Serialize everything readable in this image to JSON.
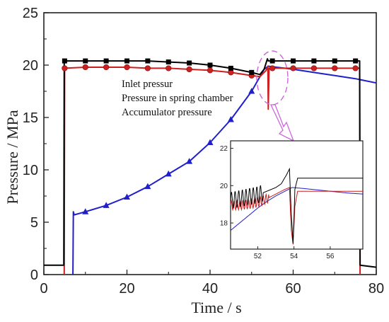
{
  "chart_data": [
    {
      "type": "line",
      "xlabel": "Time / s",
      "ylabel": "Pressure  / MPa",
      "xlim": [
        0,
        80
      ],
      "ylim": [
        0,
        25
      ],
      "xticks": [
        "0",
        "20",
        "40",
        "60",
        "80"
      ],
      "yticks": [
        "0",
        "5",
        "10",
        "15",
        "20",
        "25"
      ],
      "legend": {
        "placement": "inside-center",
        "entries": [
          "Inlet pressur",
          "Pressure in spring chamber",
          "Accumulator pressure"
        ]
      },
      "series": [
        {
          "name": "Inlet pressur",
          "color": "#000000",
          "marker": "square",
          "points": [
            [
              0,
              0.9
            ],
            [
              4.8,
              0.9
            ],
            [
              4.9,
              20.4
            ],
            [
              10,
              20.4
            ],
            [
              15,
              20.4
            ],
            [
              20,
              20.4
            ],
            [
              25,
              20.4
            ],
            [
              30,
              20.3
            ],
            [
              35,
              20.2
            ],
            [
              40,
              20.0
            ],
            [
              45,
              19.7
            ],
            [
              50,
              19.3
            ],
            [
              52,
              19.1
            ],
            [
              53,
              19.6
            ],
            [
              53.8,
              20.6
            ],
            [
              54,
              20.4
            ],
            [
              55,
              20.4
            ],
            [
              60,
              20.4
            ],
            [
              65,
              20.4
            ],
            [
              70,
              20.4
            ],
            [
              75,
              20.4
            ],
            [
              76,
              20.4
            ],
            [
              76.1,
              0.9
            ],
            [
              80,
              0.7
            ]
          ],
          "marker_x": [
            5,
            10,
            15,
            20,
            25,
            30,
            35,
            40,
            45,
            50,
            55,
            60,
            65,
            70,
            75
          ]
        },
        {
          "name": "Pressure in spring chamber",
          "color": "#cc1f1f",
          "marker": "circle",
          "points": [
            [
              4.9,
              0
            ],
            [
              5,
              19.7
            ],
            [
              10,
              19.8
            ],
            [
              15,
              19.8
            ],
            [
              20,
              19.8
            ],
            [
              25,
              19.7
            ],
            [
              30,
              19.7
            ],
            [
              35,
              19.6
            ],
            [
              40,
              19.5
            ],
            [
              45,
              19.3
            ],
            [
              50,
              19.0
            ],
            [
              52,
              18.9
            ],
            [
              53.5,
              19.5
            ],
            [
              53.9,
              19.9
            ],
            [
              54,
              15.8
            ],
            [
              54.2,
              19.7
            ],
            [
              60,
              19.7
            ],
            [
              65,
              19.7
            ],
            [
              70,
              19.7
            ],
            [
              76,
              19.7
            ],
            [
              76.1,
              0
            ]
          ],
          "marker_x": [
            5,
            10,
            15,
            20,
            25,
            30,
            35,
            40,
            45,
            50,
            55,
            60,
            65,
            70,
            75
          ]
        },
        {
          "name": "Accumulator pressure",
          "color": "#1f1fcc",
          "marker": "triangle",
          "points": [
            [
              7,
              0
            ],
            [
              7.1,
              6.0
            ],
            [
              7.3,
              5.7
            ],
            [
              10,
              6.0
            ],
            [
              15,
              6.6
            ],
            [
              20,
              7.4
            ],
            [
              25,
              8.4
            ],
            [
              30,
              9.6
            ],
            [
              35,
              10.8
            ],
            [
              40,
              12.6
            ],
            [
              45,
              14.8
            ],
            [
              50,
              17.5
            ],
            [
              53,
              19.6
            ],
            [
              54,
              19.9
            ],
            [
              60,
              19.6
            ],
            [
              65,
              19.3
            ],
            [
              70,
              19.0
            ],
            [
              75,
              18.7
            ],
            [
              80,
              18.3
            ]
          ],
          "marker_x": [
            10,
            15,
            20,
            25,
            30,
            35,
            40,
            45,
            50
          ]
        }
      ]
    },
    {
      "type": "line",
      "xlim": [
        50.5,
        57.8
      ],
      "ylim": [
        16.6,
        22.4
      ],
      "xticks": [
        "52",
        "54",
        "56"
      ],
      "yticks": [
        "18",
        "20",
        "22"
      ],
      "series": [
        {
          "name": "Inlet pressur",
          "color": "#000000",
          "points": [
            [
              50.5,
              19.2
            ],
            [
              51.0,
              19.3
            ],
            [
              51.5,
              19.4
            ],
            [
              52.0,
              19.5
            ],
            [
              52.5,
              19.7
            ],
            [
              53.0,
              19.9
            ],
            [
              53.3,
              20.1
            ],
            [
              53.6,
              20.6
            ],
            [
              53.75,
              20.9
            ],
            [
              53.85,
              18.5
            ],
            [
              53.95,
              16.9
            ],
            [
              54.05,
              19.8
            ],
            [
              54.2,
              20.4
            ],
            [
              55,
              20.4
            ],
            [
              56,
              20.4
            ],
            [
              57.8,
              20.4
            ]
          ],
          "oscillation": {
            "from": 50.5,
            "to": 52.3,
            "amplitude": 0.45,
            "period": 0.2
          }
        },
        {
          "name": "Pressure in spring chamber",
          "color": "#cc1f1f",
          "points": [
            [
              50.5,
              18.95
            ],
            [
              51.0,
              18.95
            ],
            [
              51.5,
              19.0
            ],
            [
              52.0,
              19.1
            ],
            [
              52.5,
              19.3
            ],
            [
              53.0,
              19.55
            ],
            [
              53.5,
              19.8
            ],
            [
              53.75,
              19.9
            ],
            [
              53.85,
              17.6
            ],
            [
              53.95,
              16.85
            ],
            [
              54.05,
              18.9
            ],
            [
              54.2,
              19.7
            ],
            [
              55,
              19.7
            ],
            [
              56,
              19.7
            ],
            [
              57.8,
              19.7
            ]
          ],
          "oscillation": {
            "from": 50.5,
            "to": 52.6,
            "amplitude": 0.25,
            "period": 0.16
          }
        },
        {
          "name": "Accumulator pressure",
          "color": "#1f1fcc",
          "points": [
            [
              50.5,
              17.6
            ],
            [
              51.0,
              18.0
            ],
            [
              51.5,
              18.4
            ],
            [
              52.0,
              18.8
            ],
            [
              52.5,
              19.15
            ],
            [
              53.0,
              19.45
            ],
            [
              53.5,
              19.7
            ],
            [
              53.9,
              19.9
            ],
            [
              54.5,
              19.85
            ],
            [
              55,
              19.8
            ],
            [
              56,
              19.7
            ],
            [
              57,
              19.6
            ],
            [
              57.8,
              19.55
            ]
          ]
        }
      ]
    }
  ]
}
